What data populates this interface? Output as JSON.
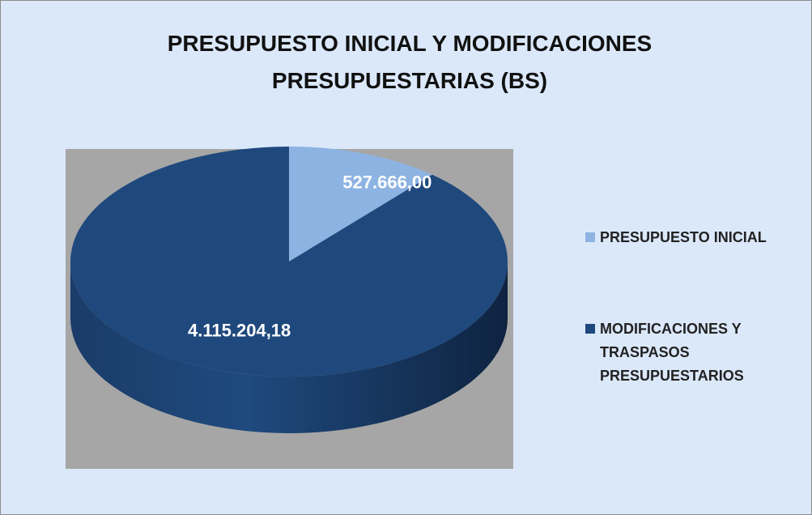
{
  "chart_data": {
    "type": "pie",
    "title": "PRESUPUESTO INICIAL Y MODIFICACIONES PRESUPUESTARIAS (BS)",
    "categories": [
      "PRESUPUESTO INICIAL",
      "MODIFICACIONES Y TRASPASOS PRESUPUESTARIOS"
    ],
    "values": [
      527666.0,
      4115204.18
    ],
    "value_labels": [
      "527.666,00",
      "4.115.204,18"
    ],
    "colors": [
      "#8db3e2",
      "#1f497d"
    ],
    "legend": "right"
  }
}
